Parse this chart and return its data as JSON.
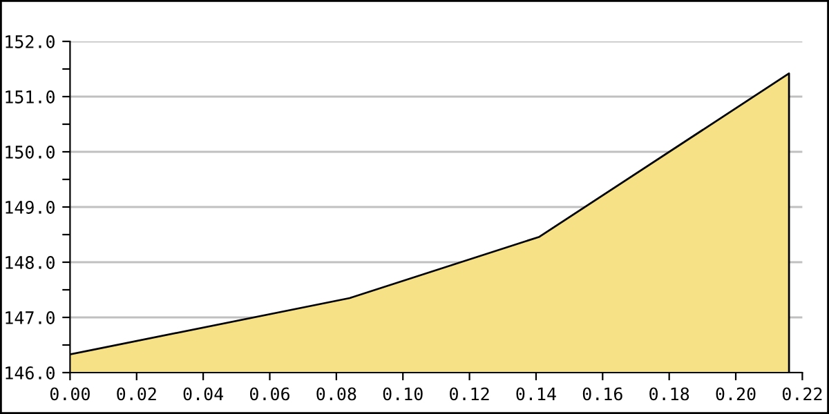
{
  "chart_data": {
    "type": "area",
    "x": [
      0,
      0.084,
      0.141,
      0.216
    ],
    "series": [
      {
        "color": "#f6e187",
        "values": [
          146.33,
          147.35,
          148.46,
          151.42
        ]
      }
    ],
    "xlim": [
      0,
      0.22
    ],
    "xticks": [
      {
        "value": 0,
        "label": "0.00"
      },
      {
        "value": 0.02,
        "label": "0.02"
      },
      {
        "value": 0.04,
        "label": "0.04"
      },
      {
        "value": 0.06,
        "label": "0.06"
      },
      {
        "value": 0.08,
        "label": "0.08"
      },
      {
        "value": 0.1,
        "label": "0.10"
      },
      {
        "value": 0.12,
        "label": "0.12"
      },
      {
        "value": 0.14,
        "label": "0.14"
      },
      {
        "value": 0.16,
        "label": "0.16"
      },
      {
        "value": 0.18,
        "label": "0.18"
      },
      {
        "value": 0.2,
        "label": "0.20"
      },
      {
        "value": 0.22,
        "label": "0.22"
      }
    ],
    "ylim": [
      146,
      152
    ],
    "yticks": [
      {
        "value": 146,
        "label": "146.0"
      },
      {
        "value": 146.5,
        "label": null
      },
      {
        "value": 147,
        "label": "147.0"
      },
      {
        "value": 147.5,
        "label": null
      },
      {
        "value": 148,
        "label": "148.0"
      },
      {
        "value": 148.5,
        "label": null
      },
      {
        "value": 149,
        "label": "149.0"
      },
      {
        "value": 149.5,
        "label": null
      },
      {
        "value": 150,
        "label": "150.0"
      },
      {
        "value": 150.5,
        "label": null
      },
      {
        "value": 151,
        "label": "151.0"
      },
      {
        "value": 151.5,
        "label": null
      },
      {
        "value": 152,
        "label": "152.0"
      }
    ],
    "grid": "y"
  }
}
